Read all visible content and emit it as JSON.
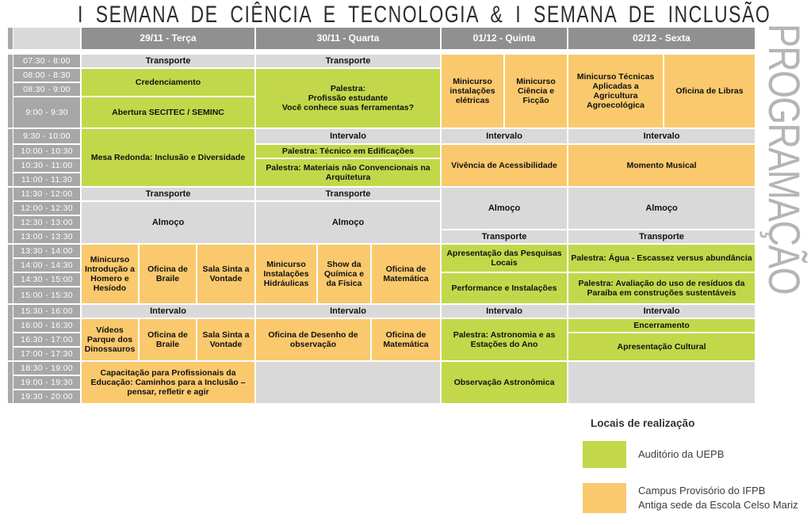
{
  "title": "I SEMANA DE CIÊNCIA E TECNOLOGIA & I SEMANA DE INCLUSÃO",
  "vertical_label": "PROGRAMAÇÃO",
  "colors": {
    "green": "#c2d84a",
    "orange": "#fac96d",
    "band": "#d9d9d9",
    "head": "#909090",
    "time": "#a7a7a7",
    "strip": "#a9a9a9"
  },
  "schedule": {
    "days": [
      {
        "label": "29/11 - Terça"
      },
      {
        "label": "30/11 - Quarta"
      },
      {
        "label": "01/12 - Quinta"
      },
      {
        "label": "02/12 - Sexta"
      }
    ],
    "time_slots": [
      "07:30 - 8:00",
      "08:00 - 8:30",
      "08:30 - 9:00",
      "9:00 - 9:30",
      "9:30 - 10:00",
      "10:00 - 10:30",
      "10:30 - 11:00",
      "11:00 - 11:30",
      "11:30 - 12:00",
      "12:00 - 12:30",
      "12:30 - 13:00",
      "13:00 - 13:30",
      "13:30 - 14:00",
      "14:00 - 14:30",
      "14:30 - 15:00",
      "15:00 - 15:30",
      "15:30 - 16:00",
      "16:00 - 16:30",
      "16:30 - 17:00",
      "17:00 - 17:30",
      "18:30 - 19:00",
      "19:00 - 19:30",
      "19:30 - 20:00"
    ],
    "events": [
      {
        "day": 0,
        "row": 1,
        "rows": 1,
        "type": "band",
        "label": "Transporte"
      },
      {
        "day": 0,
        "row": 2,
        "rows": 2,
        "type": "green",
        "label": "Credenciamento"
      },
      {
        "day": 0,
        "row": 4,
        "rows": 1,
        "type": "green",
        "label": "Abertura SECITEC / SEMINC"
      },
      {
        "day": 0,
        "row": 5,
        "rows": 4,
        "type": "green",
        "label": "Mesa Redonda: Inclusão e Diversidade"
      },
      {
        "day": 0,
        "row": 9,
        "rows": 1,
        "type": "band",
        "label": "Transporte"
      },
      {
        "day": 0,
        "row": 10,
        "rows": 3,
        "type": "band",
        "label": "Almoço"
      },
      {
        "day": 0,
        "row": 13,
        "rows": 4,
        "col": 0,
        "type": "orange",
        "label": "Minicurso Introdução a Homero e Hesíodo"
      },
      {
        "day": 0,
        "row": 13,
        "rows": 4,
        "col": 1,
        "type": "orange",
        "label": "Oficina de Braile"
      },
      {
        "day": 0,
        "row": 13,
        "rows": 4,
        "col": 2,
        "type": "orange",
        "label": "Sala Sinta a Vontade"
      },
      {
        "day": 0,
        "row": 17,
        "rows": 1,
        "type": "band",
        "label": "Intervalo"
      },
      {
        "day": 0,
        "row": 18,
        "rows": 3,
        "col": 0,
        "type": "orange",
        "label": "Vídeos Parque dos Dinossauros"
      },
      {
        "day": 0,
        "row": 18,
        "rows": 3,
        "col": 1,
        "type": "orange",
        "label": "Oficina de Braile"
      },
      {
        "day": 0,
        "row": 18,
        "rows": 3,
        "col": 2,
        "type": "orange",
        "label": "Sala Sinta a Vontade"
      },
      {
        "day": 0,
        "row": 21,
        "rows": 3,
        "type": "orange",
        "label": "Capacitação para Profissionais da Educação: Caminhos para a Inclusão – pensar, refletir e agir"
      },
      {
        "day": 1,
        "row": 1,
        "rows": 1,
        "type": "band",
        "label": "Transporte"
      },
      {
        "day": 1,
        "row": 2,
        "rows": 3,
        "type": "green",
        "label": "Palestra:\nProfissão estudante\nVocê conhece suas ferramentas?"
      },
      {
        "day": 1,
        "row": 5,
        "rows": 1,
        "type": "band",
        "label": "Intervalo"
      },
      {
        "day": 1,
        "row": 6,
        "rows": 1,
        "type": "green",
        "label": "Palestra: Técnico em Edificações"
      },
      {
        "day": 1,
        "row": 7,
        "rows": 2,
        "type": "green",
        "label": "Palestra: Materiais não Convencionais na Arquitetura"
      },
      {
        "day": 1,
        "row": 9,
        "rows": 1,
        "type": "band",
        "label": "Transporte"
      },
      {
        "day": 1,
        "row": 10,
        "rows": 3,
        "type": "band",
        "label": "Almoço"
      },
      {
        "day": 1,
        "row": 13,
        "rows": 4,
        "col": 0,
        "type": "orange",
        "label": "Minicurso Instalações Hidráulicas"
      },
      {
        "day": 1,
        "row": 13,
        "rows": 4,
        "col": 1,
        "type": "orange",
        "label": "Show da Química e da Física"
      },
      {
        "day": 1,
        "row": 13,
        "rows": 4,
        "col": 2,
        "type": "orange",
        "label": "Oficina de Matemática"
      },
      {
        "day": 1,
        "row": 17,
        "rows": 1,
        "type": "band",
        "label": "Intervalo"
      },
      {
        "day": 1,
        "row": 18,
        "rows": 3,
        "col": 0,
        "cols": 2,
        "type": "orange",
        "label": "Oficina de Desenho de observação"
      },
      {
        "day": 1,
        "row": 18,
        "rows": 3,
        "col": 2,
        "type": "orange",
        "label": "Oficina de Matemática"
      },
      {
        "day": 1,
        "row": 21,
        "rows": 3,
        "type": "band",
        "label": ""
      },
      {
        "day": 2,
        "row": 1,
        "rows": 4,
        "col": 0,
        "type": "orange",
        "label": "Minicurso instalações elétricas"
      },
      {
        "day": 2,
        "row": 1,
        "rows": 4,
        "col": 1,
        "type": "orange",
        "label": "Minicurso Ciência e Ficção"
      },
      {
        "day": 2,
        "row": 5,
        "rows": 1,
        "type": "band",
        "label": "Intervalo"
      },
      {
        "day": 2,
        "row": 6,
        "rows": 3,
        "type": "orange",
        "label": "Vivência de Acessibilidade"
      },
      {
        "day": 2,
        "row": 9,
        "rows": 3,
        "type": "band",
        "label": "Almoço"
      },
      {
        "day": 2,
        "row": 12,
        "rows": 1,
        "type": "band",
        "label": "Transporte"
      },
      {
        "day": 2,
        "row": 13,
        "rows": 2,
        "type": "green",
        "label": "Apresentação das Pesquisas Locais"
      },
      {
        "day": 2,
        "row": 15,
        "rows": 2,
        "type": "green",
        "label": "Performance e Instalações"
      },
      {
        "day": 2,
        "row": 17,
        "rows": 1,
        "type": "band",
        "label": "Intervalo"
      },
      {
        "day": 2,
        "row": 18,
        "rows": 3,
        "type": "green",
        "label": "Palestra: Astronomia e as Estações do Ano"
      },
      {
        "day": 2,
        "row": 21,
        "rows": 3,
        "type": "green",
        "label": "Observação Astronômica"
      },
      {
        "day": 3,
        "row": 1,
        "rows": 4,
        "col": 0,
        "type": "orange",
        "label": "Minicurso Técnicas Aplicadas a Agricultura Agroecológica"
      },
      {
        "day": 3,
        "row": 1,
        "rows": 4,
        "col": 1,
        "type": "orange",
        "label": "Oficina de Libras"
      },
      {
        "day": 3,
        "row": 5,
        "rows": 1,
        "type": "band",
        "label": "Intervalo"
      },
      {
        "day": 3,
        "row": 6,
        "rows": 3,
        "type": "orange",
        "label": "Momento Musical"
      },
      {
        "day": 3,
        "row": 9,
        "rows": 3,
        "type": "band",
        "label": "Almoço"
      },
      {
        "day": 3,
        "row": 12,
        "rows": 1,
        "type": "band",
        "label": "Transporte"
      },
      {
        "day": 3,
        "row": 13,
        "rows": 2,
        "type": "green",
        "label": "Palestra: Água - Escassez versus abundância"
      },
      {
        "day": 3,
        "row": 15,
        "rows": 2,
        "type": "green",
        "label": "Palestra: Avaliação do uso de resíduos da Paraíba em construções sustentáveis"
      },
      {
        "day": 3,
        "row": 17,
        "rows": 1,
        "type": "band",
        "label": "Intervalo"
      },
      {
        "day": 3,
        "row": 18,
        "rows": 1,
        "type": "green",
        "label": "Encerramento"
      },
      {
        "day": 3,
        "row": 19,
        "rows": 2,
        "type": "green",
        "label": "Apresentação Cultural"
      },
      {
        "day": 3,
        "row": 21,
        "rows": 3,
        "type": "band",
        "label": ""
      }
    ]
  },
  "legend": {
    "title": "Locais de realização",
    "items": [
      {
        "swatch": "green",
        "lines": [
          "Auditório da UEPB"
        ]
      },
      {
        "swatch": "orange",
        "lines": [
          "Campus Provisório do IFPB",
          "Antiga sede da Escola Celso Mariz"
        ]
      }
    ]
  }
}
